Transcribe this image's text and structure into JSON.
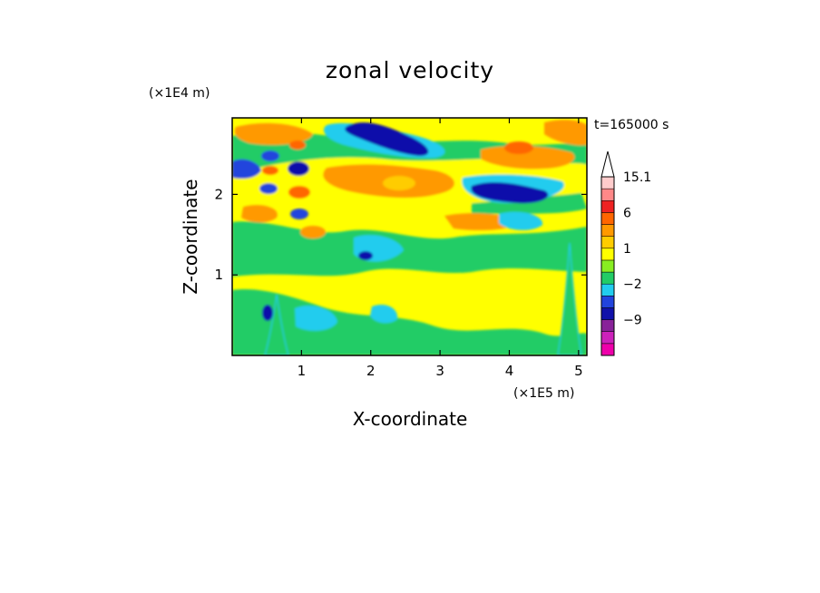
{
  "chart_data": {
    "type": "heatmap",
    "title": "zonal velocity",
    "xlabel": "X-coordinate",
    "ylabel": "Z-coordinate",
    "x_scale_label": "(×1E5 m)",
    "y_scale_label": "(×1E4 m)",
    "time_label": "t=165000 s",
    "xlim": [
      0,
      5.12
    ],
    "ylim": [
      0,
      2.95
    ],
    "x_ticks": [
      1,
      2,
      3,
      4,
      5
    ],
    "y_ticks": [
      1,
      2
    ],
    "colorbar": {
      "levels": [
        -15,
        -12,
        -9,
        -6,
        -3,
        -2,
        -1,
        0,
        1,
        2,
        3,
        6,
        9,
        12,
        15.1
      ],
      "tick_labels": [
        {
          "value": 15.1,
          "text": "15.1"
        },
        {
          "value": 6,
          "text": "6"
        },
        {
          "value": 1,
          "text": "1"
        },
        {
          "value": -2,
          "text": "−2"
        },
        {
          "value": -9,
          "text": "−9"
        }
      ],
      "colors": [
        "#ee00aa",
        "#cc22bb",
        "#882299",
        "#1111aa",
        "#2244dd",
        "#22ccee",
        "#22cc66",
        "#88ee22",
        "#ffff00",
        "#ffcc00",
        "#ff9900",
        "#ff6600",
        "#ee2222",
        "#ff8888",
        "#ffcccc"
      ],
      "extend": "max"
    },
    "features": [
      {
        "name": "blue-jet-upper-left",
        "x": 0.12,
        "z": 2.45,
        "value": -6
      },
      {
        "name": "blue-jet-top-center",
        "x": 2.2,
        "z": 2.75,
        "value": -6
      },
      {
        "name": "blue-jet-upper-right",
        "x": 3.9,
        "z": 2.05,
        "value": -6
      },
      {
        "name": "orange-band-left",
        "x": 0.9,
        "z": 2.1,
        "value": 3
      },
      {
        "name": "orange-band-center",
        "x": 2.5,
        "z": 2.1,
        "value": 3
      },
      {
        "name": "cyan-patch-lower-left",
        "x": 1.2,
        "z": 0.4,
        "value": -2
      },
      {
        "name": "mountain-left",
        "x": 0.65,
        "z": 0.75,
        "value": 0
      },
      {
        "name": "mountain-right",
        "x": 4.9,
        "z": 1.0,
        "value": 0
      }
    ]
  }
}
